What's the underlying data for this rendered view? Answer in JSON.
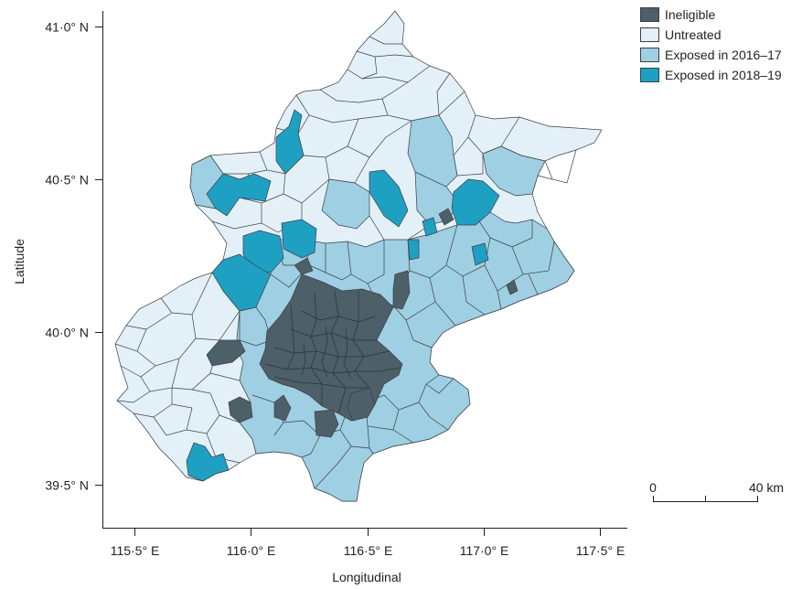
{
  "axes": {
    "x_title": "Longitudinal",
    "y_title": "Latitude",
    "x_ticks": [
      {
        "value": 115.5,
        "label": "115·5° E"
      },
      {
        "value": 116.0,
        "label": "116·0° E"
      },
      {
        "value": 116.5,
        "label": "116·5° E"
      },
      {
        "value": 117.0,
        "label": "117·0° E"
      },
      {
        "value": 117.5,
        "label": "117·5° E"
      }
    ],
    "y_ticks": [
      {
        "value": 41.0,
        "label": "41·0° N"
      },
      {
        "value": 40.5,
        "label": "40·5° N"
      },
      {
        "value": 40.0,
        "label": "40·0° N"
      },
      {
        "value": 39.5,
        "label": "39·5° N"
      }
    ]
  },
  "legend": {
    "items": [
      {
        "key": "ineligible",
        "label": "Ineligible",
        "color": "#4d5f69"
      },
      {
        "key": "untreated",
        "label": "Untreated",
        "color": "#e3f0f7"
      },
      {
        "key": "exposed_2016_17",
        "label": "Exposed in 2016–17",
        "color": "#9fcfe3"
      },
      {
        "key": "exposed_2018_19",
        "label": "Exposed in 2018–19",
        "color": "#1ea0c3"
      }
    ]
  },
  "scale_bar": {
    "start_label": "0",
    "end_label": "40 km"
  },
  "colors": {
    "ineligible": "#4d5f69",
    "untreated": "#e3f0f7",
    "exposed_2016_17": "#9fcfe3",
    "exposed_2018_19": "#1ea0c3",
    "border": "#3a3f44"
  }
}
